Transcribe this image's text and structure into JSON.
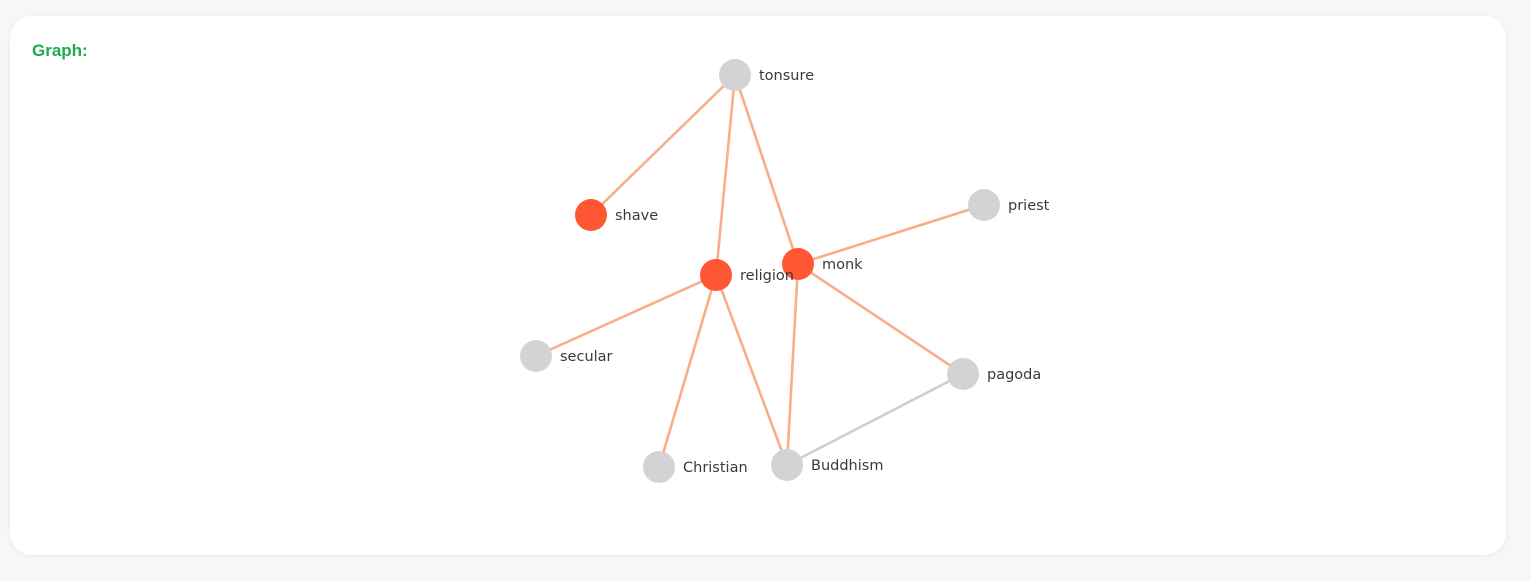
{
  "header": {
    "title": "Graph:",
    "title_color": "#1fa84f"
  },
  "graph": {
    "colors": {
      "highlight_node": "#ff5733",
      "default_node": "#d3d3d3",
      "highlight_edge": "#f9ae87",
      "default_edge": "#cfcfcf"
    },
    "nodes": [
      {
        "id": "tonsure",
        "label": "tonsure",
        "highlight": false
      },
      {
        "id": "shave",
        "label": "shave",
        "highlight": true
      },
      {
        "id": "priest",
        "label": "priest",
        "highlight": false
      },
      {
        "id": "religion",
        "label": "religion",
        "highlight": true
      },
      {
        "id": "monk",
        "label": "monk",
        "highlight": true
      },
      {
        "id": "secular",
        "label": "secular",
        "highlight": false
      },
      {
        "id": "pagoda",
        "label": "pagoda",
        "highlight": false
      },
      {
        "id": "Christian",
        "label": "Christian",
        "highlight": false
      },
      {
        "id": "Buddhism",
        "label": "Buddhism",
        "highlight": false
      }
    ],
    "edges": [
      {
        "source": "tonsure",
        "target": "shave",
        "highlight": true
      },
      {
        "source": "tonsure",
        "target": "religion",
        "highlight": true
      },
      {
        "source": "tonsure",
        "target": "monk",
        "highlight": true
      },
      {
        "source": "monk",
        "target": "priest",
        "highlight": true
      },
      {
        "source": "monk",
        "target": "pagoda",
        "highlight": true
      },
      {
        "source": "monk",
        "target": "Buddhism",
        "highlight": true
      },
      {
        "source": "religion",
        "target": "secular",
        "highlight": true
      },
      {
        "source": "religion",
        "target": "Christian",
        "highlight": true
      },
      {
        "source": "religion",
        "target": "Buddhism",
        "highlight": true
      },
      {
        "source": "pagoda",
        "target": "Buddhism",
        "highlight": false
      }
    ]
  }
}
